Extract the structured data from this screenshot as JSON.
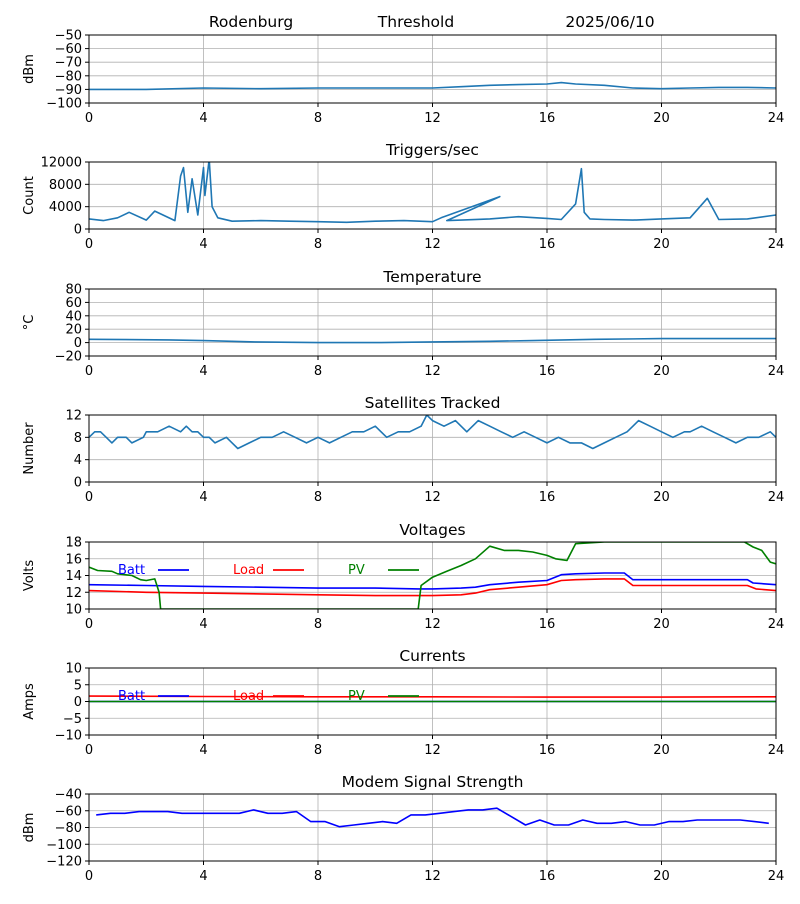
{
  "header": {
    "site": "Rodenburg",
    "mode": "Threshold",
    "date": "2025/06/10"
  },
  "chart_data": [
    {
      "type": "line",
      "title": "",
      "ylabel": "dBm",
      "xlim": [
        0,
        24
      ],
      "ylim": [
        -100,
        -50
      ],
      "xticks": [
        0,
        4,
        8,
        12,
        16,
        20,
        24
      ],
      "yticks": [
        -100,
        -90,
        -80,
        -70,
        -60,
        -50
      ],
      "grid": true,
      "color": "#1f77b4",
      "series": [
        {
          "name": "",
          "x": [
            0,
            2,
            4,
            6,
            8,
            10,
            12,
            13,
            14,
            15,
            16,
            16.5,
            17,
            18,
            19,
            20,
            21,
            22,
            23,
            24
          ],
          "y": [
            -90,
            -90,
            -89,
            -89.5,
            -89,
            -89,
            -89,
            -88,
            -87,
            -86.5,
            -86,
            -85,
            -86,
            -87,
            -89,
            -89.5,
            -89,
            -88.5,
            -88.5,
            -89
          ]
        }
      ]
    },
    {
      "type": "line",
      "title": "Triggers/sec",
      "ylabel": "Count",
      "xlim": [
        0,
        24
      ],
      "ylim": [
        0,
        12000
      ],
      "xticks": [
        0,
        4,
        8,
        12,
        16,
        20,
        24
      ],
      "yticks": [
        0,
        4000,
        8000,
        12000
      ],
      "grid": true,
      "color": "#1f77b4",
      "series": [
        {
          "name": "",
          "x": [
            0,
            0.5,
            1,
            1.4,
            2,
            2.3,
            3,
            3.2,
            3.3,
            3.45,
            3.6,
            3.8,
            4,
            4.05,
            4.2,
            4.3,
            4.5,
            5,
            6,
            7,
            8,
            9,
            10,
            11,
            12,
            12.3,
            14.35,
            12.5,
            13,
            14,
            15,
            16,
            16.5,
            17,
            17.2,
            17.3,
            17.5,
            18,
            19,
            20,
            21,
            21.6,
            22,
            23,
            24
          ],
          "y": [
            1800,
            1500,
            2000,
            3000,
            1600,
            3200,
            1500,
            9500,
            11000,
            3000,
            9000,
            2500,
            11000,
            6000,
            12500,
            4000,
            2000,
            1400,
            1500,
            1400,
            1300,
            1200,
            1400,
            1500,
            1300,
            2000,
            5800,
            1500,
            1600,
            1800,
            2200,
            1900,
            1700,
            4500,
            10800,
            3000,
            1800,
            1700,
            1600,
            1800,
            2000,
            5500,
            1700,
            1800,
            2500
          ]
        }
      ]
    },
    {
      "type": "line",
      "title": "Temperature",
      "ylabel": "°C",
      "xlim": [
        0,
        24
      ],
      "ylim": [
        -20,
        80
      ],
      "xticks": [
        0,
        4,
        8,
        12,
        16,
        20,
        24
      ],
      "yticks": [
        -20,
        0,
        20,
        40,
        60,
        80
      ],
      "grid": true,
      "color": "#1f77b4",
      "series": [
        {
          "name": "",
          "x": [
            0,
            2.8,
            4,
            5.8,
            8,
            10,
            12,
            14,
            15.5,
            17.7,
            20,
            24
          ],
          "y": [
            5,
            4,
            3,
            1,
            0,
            0,
            1,
            2,
            3,
            5,
            6,
            6
          ]
        }
      ]
    },
    {
      "type": "line",
      "title": "Satellites Tracked",
      "ylabel": "Number",
      "xlim": [
        0,
        24
      ],
      "ylim": [
        0,
        12
      ],
      "xticks": [
        0,
        4,
        8,
        12,
        16,
        20,
        24
      ],
      "yticks": [
        0,
        4,
        8,
        12
      ],
      "grid": true,
      "color": "#1f77b4",
      "series": [
        {
          "name": "",
          "x": [
            0,
            0.2,
            0.4,
            0.6,
            0.8,
            1,
            1.3,
            1.5,
            1.9,
            2,
            2.4,
            2.8,
            3.2,
            3.4,
            3.6,
            3.8,
            4,
            4.2,
            4.4,
            4.8,
            5,
            5.2,
            5.6,
            6,
            6.4,
            6.8,
            7.2,
            7.6,
            8,
            8.4,
            8.8,
            9.2,
            9.6,
            10,
            10.4,
            10.8,
            11.2,
            11.6,
            11.8,
            12,
            12.4,
            12.8,
            13.2,
            13.6,
            14,
            14.4,
            14.8,
            15.2,
            15.6,
            16,
            16.4,
            16.8,
            17.2,
            17.6,
            18,
            18.4,
            18.8,
            19,
            19.2,
            19.6,
            20,
            20.4,
            20.8,
            21,
            21.4,
            21.8,
            22.2,
            22.6,
            23,
            23.4,
            23.8,
            24
          ],
          "y": [
            8,
            9,
            9,
            8,
            7,
            8,
            8,
            7,
            8,
            9,
            9,
            10,
            9,
            10,
            9,
            9,
            8,
            8,
            7,
            8,
            7,
            6,
            7,
            8,
            8,
            9,
            8,
            7,
            8,
            7,
            8,
            9,
            9,
            10,
            8,
            9,
            9,
            10,
            12,
            11,
            10,
            11,
            9,
            11,
            10,
            9,
            8,
            9,
            8,
            7,
            8,
            7,
            7,
            6,
            7,
            8,
            9,
            10,
            11,
            10,
            9,
            8,
            9,
            9,
            10,
            9,
            8,
            7,
            8,
            8,
            9,
            8
          ]
        }
      ]
    },
    {
      "type": "line",
      "title": "Voltages",
      "ylabel": "Volts",
      "xlim": [
        0,
        24
      ],
      "ylim": [
        10,
        18
      ],
      "xticks": [
        0,
        4,
        8,
        12,
        16,
        20,
        24
      ],
      "yticks": [
        10,
        12,
        14,
        16,
        18
      ],
      "grid": true,
      "legend": "top-left",
      "series": [
        {
          "name": "Batt",
          "color": "#0000ff",
          "x": [
            0,
            2,
            4,
            6,
            8,
            10,
            11.5,
            12,
            13,
            13.5,
            14,
            15,
            16,
            16.5,
            17,
            18,
            18.7,
            19,
            20,
            21,
            22,
            23,
            23.2,
            24
          ],
          "y": [
            12.9,
            12.8,
            12.7,
            12.6,
            12.5,
            12.5,
            12.4,
            12.4,
            12.5,
            12.6,
            12.9,
            13.2,
            13.4,
            14.1,
            14.2,
            14.3,
            14.3,
            13.5,
            13.5,
            13.5,
            13.5,
            13.5,
            13.1,
            12.9
          ]
        },
        {
          "name": "Load",
          "color": "#ff0000",
          "x": [
            0,
            2,
            4,
            6,
            8,
            10,
            12,
            13,
            13.5,
            14,
            15,
            16,
            16.5,
            17,
            18,
            18.7,
            19,
            20,
            22,
            23,
            23.3,
            24
          ],
          "y": [
            12.2,
            12.0,
            11.9,
            11.8,
            11.7,
            11.6,
            11.6,
            11.7,
            11.9,
            12.3,
            12.6,
            12.9,
            13.4,
            13.5,
            13.6,
            13.6,
            12.8,
            12.8,
            12.8,
            12.8,
            12.4,
            12.2
          ]
        },
        {
          "name": "PV",
          "color": "#008000",
          "x": [
            0,
            0.3,
            0.8,
            1,
            1.5,
            1.8,
            2,
            2.3,
            2.45,
            2.5,
            11.5,
            11.6,
            12,
            12.5,
            13,
            13.5,
            14,
            14.5,
            15,
            15.5,
            16,
            16.3,
            16.7,
            17,
            18,
            19,
            19.5,
            20,
            21,
            22,
            22.9,
            23.2,
            23.5,
            23.8,
            24
          ],
          "y": [
            15.0,
            14.6,
            14.5,
            14.2,
            14.0,
            13.5,
            13.4,
            13.6,
            12.0,
            10,
            10,
            12.8,
            13.8,
            14.5,
            15.2,
            16.0,
            17.5,
            17.0,
            17.0,
            16.8,
            16.4,
            16.0,
            15.8,
            17.8,
            18.0,
            18.0,
            18.0,
            18.0,
            18.0,
            18.0,
            18.0,
            17.4,
            17.0,
            15.6,
            15.4
          ]
        }
      ]
    },
    {
      "type": "line",
      "title": "Currents",
      "ylabel": "Amps",
      "xlim": [
        0,
        24
      ],
      "ylim": [
        -10,
        10
      ],
      "xticks": [
        0,
        4,
        8,
        12,
        16,
        20,
        24
      ],
      "yticks": [
        -10,
        -5,
        0,
        5,
        10
      ],
      "grid": true,
      "legend": "top-left",
      "series": [
        {
          "name": "Batt",
          "color": "#0000ff",
          "x": [
            0,
            24
          ],
          "y": [
            0,
            0
          ]
        },
        {
          "name": "Load",
          "color": "#ff0000",
          "x": [
            0,
            4,
            8,
            12,
            16,
            20,
            24
          ],
          "y": [
            1.6,
            1.5,
            1.4,
            1.4,
            1.3,
            1.3,
            1.4
          ]
        },
        {
          "name": "PV",
          "color": "#008000",
          "x": [
            0,
            24
          ],
          "y": [
            0,
            0
          ]
        }
      ]
    },
    {
      "type": "line",
      "title": "Modem Signal Strength",
      "ylabel": "dBm",
      "xlim": [
        0,
        24
      ],
      "ylim": [
        -120,
        -40
      ],
      "xticks": [
        0,
        4,
        8,
        12,
        16,
        20,
        24
      ],
      "yticks": [
        -120,
        -100,
        -80,
        -60,
        -40
      ],
      "grid": true,
      "color": "#0000ff",
      "series": [
        {
          "name": "",
          "x": [
            0.25,
            0.75,
            1.25,
            1.75,
            2.25,
            2.75,
            3.25,
            3.75,
            4.25,
            4.75,
            5.25,
            5.75,
            6.25,
            6.75,
            7.25,
            7.75,
            8.25,
            8.75,
            9.25,
            9.75,
            10.25,
            10.75,
            11.25,
            11.75,
            12.25,
            12.75,
            13.25,
            13.75,
            14.25,
            14.75,
            15.25,
            15.75,
            16.25,
            16.75,
            17.25,
            17.75,
            18.25,
            18.75,
            19.25,
            19.75,
            20.25,
            20.75,
            21.25,
            21.75,
            22.25,
            22.75,
            23.25,
            23.75
          ],
          "y": [
            -65,
            -63,
            -63,
            -61,
            -61,
            -61,
            -63,
            -63,
            -63,
            -63,
            -63,
            -59,
            -63,
            -63,
            -61,
            -73,
            -73,
            -79,
            -77,
            -75,
            -73,
            -75,
            -65,
            -65,
            -63,
            -61,
            -59,
            -59,
            -57,
            -67,
            -77,
            -71,
            -77,
            -77,
            -71,
            -75,
            -75,
            -73,
            -77,
            -77,
            -73,
            -73,
            -71,
            -71,
            -71,
            -71,
            -73,
            -75
          ]
        }
      ]
    }
  ]
}
